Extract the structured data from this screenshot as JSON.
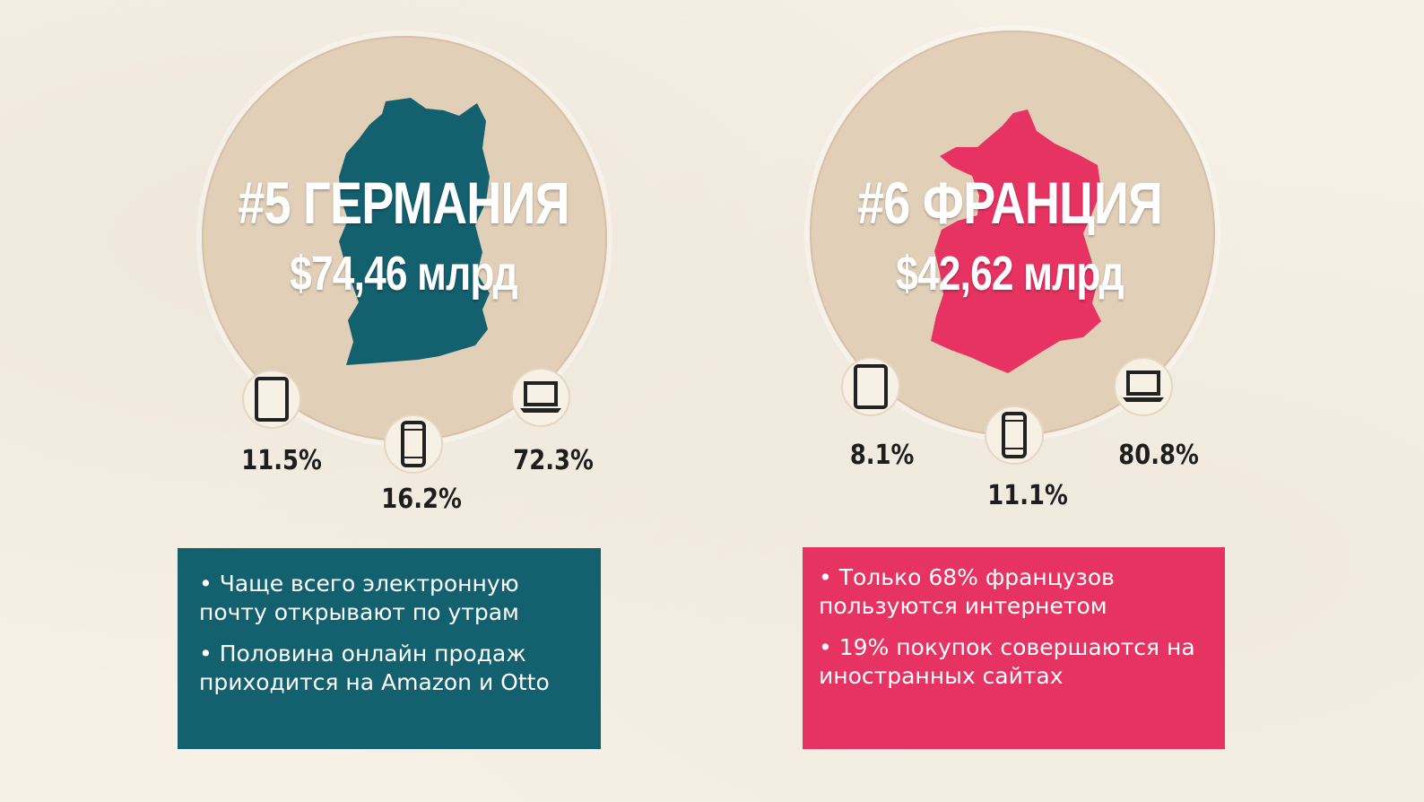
{
  "colors": {
    "germany": "#13606f",
    "france": "#e73362",
    "circle": "#e2cfb8",
    "background": "#f6f0e6"
  },
  "germany": {
    "rank_title": "#5 ГЕРМАНИЯ",
    "amount": "$74,46 млрд",
    "devices": [
      {
        "icon": "tablet-icon",
        "share": "11.5%"
      },
      {
        "icon": "smartphone-icon",
        "share": "16.2%"
      },
      {
        "icon": "laptop-icon",
        "share": "72.3%"
      }
    ],
    "facts": [
      "• Чаще всего электронную почту открывают по утрам",
      "• Половина онлайн продаж приходится на Amazon и Otto"
    ]
  },
  "france": {
    "rank_title": "#6 ФРАНЦИЯ",
    "amount": "$42,62 млрд",
    "devices": [
      {
        "icon": "tablet-icon",
        "share": "8.1%"
      },
      {
        "icon": "smartphone-icon",
        "share": "11.1%"
      },
      {
        "icon": "laptop-icon",
        "share": "80.8%"
      }
    ],
    "facts": [
      "• Только 68% французов пользуются интернетом",
      "• 19% покупок совершаются на иностранных сайтах"
    ]
  }
}
